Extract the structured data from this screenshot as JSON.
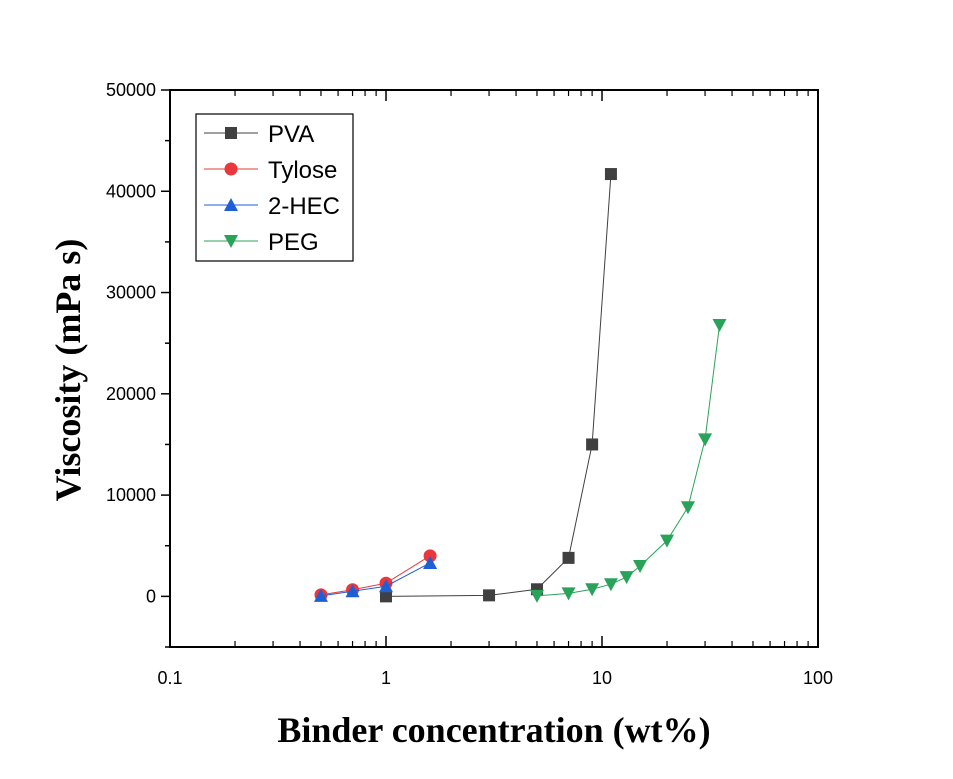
{
  "chart_data": {
    "type": "scatter",
    "xlabel": "Binder concentration (wt%)",
    "ylabel": "Viscosity (mPa s)",
    "xscale": "log",
    "xlim": [
      0.1,
      100
    ],
    "ylim": [
      -5000,
      50000
    ],
    "x_ticks": [
      0.1,
      1,
      10,
      100
    ],
    "x_tick_labels": [
      "0.1",
      "1",
      "10",
      "100"
    ],
    "y_ticks": [
      0,
      10000,
      20000,
      30000,
      40000,
      50000
    ],
    "y_tick_labels": [
      "0",
      "10000",
      "20000",
      "30000",
      "40000",
      "50000"
    ],
    "legend_position": "top-left",
    "grid": false,
    "series": [
      {
        "name": "PVA",
        "marker": "square",
        "color": "#404040",
        "x": [
          1,
          3,
          5,
          7,
          9,
          11
        ],
        "y": [
          0,
          100,
          700,
          3800,
          15000,
          41700
        ]
      },
      {
        "name": "Tylose",
        "marker": "circle",
        "color": "#e8383b",
        "x": [
          0.5,
          0.7,
          1,
          1.6
        ],
        "y": [
          150,
          650,
          1300,
          4000
        ]
      },
      {
        "name": "2-HEC",
        "marker": "triangle-up",
        "color": "#1f5fd6",
        "x": [
          0.5,
          0.7,
          1,
          1.6
        ],
        "y": [
          50,
          500,
          1000,
          3300
        ]
      },
      {
        "name": "PEG",
        "marker": "triangle-down",
        "color": "#2aa35a",
        "x": [
          5,
          7,
          9,
          11,
          13,
          15,
          20,
          25,
          30,
          35
        ],
        "y": [
          50,
          300,
          700,
          1200,
          1900,
          3000,
          5500,
          8800,
          15500,
          26800
        ]
      }
    ]
  }
}
